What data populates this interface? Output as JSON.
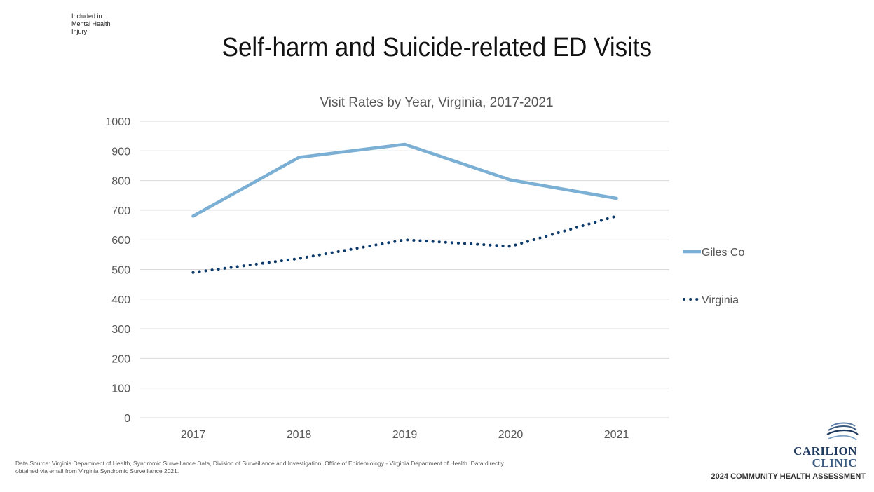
{
  "included": {
    "heading": "Included in:",
    "items": [
      "Mental Health",
      "Injury"
    ]
  },
  "slide_title": "Self-harm and Suicide-related ED Visits",
  "chart_data": {
    "type": "line",
    "title": "Visit Rates by Year, Virginia, 2017-2021",
    "xlabel": "",
    "ylabel": "",
    "categories": [
      "2017",
      "2018",
      "2019",
      "2020",
      "2021"
    ],
    "ylim": [
      0,
      1000
    ],
    "yticks": [
      0,
      100,
      200,
      300,
      400,
      500,
      600,
      700,
      800,
      900,
      1000
    ],
    "grid": true,
    "legend_position": "right",
    "series": [
      {
        "name": "Giles Co",
        "values": [
          680,
          878,
          922,
          802,
          740
        ],
        "color": "#7bafd4",
        "style": "solid"
      },
      {
        "name": "Virginia",
        "values": [
          490,
          537,
          600,
          578,
          680
        ],
        "color": "#0b3a6b",
        "style": "dotted"
      }
    ]
  },
  "footnote": {
    "line1": "Data Source: Virginia Department of Health, Syndromic Surveillance Data, Division of Surveillance and Investigation, Office of Epidemiology - Virginia Department of Health. Data directly",
    "line2": "obtained via email from Virginia Syndromic Surveillance 2021."
  },
  "logo": {
    "word1": "CARILION",
    "word2": "CLINIC"
  },
  "assessment_label": "2024 COMMUNITY HEALTH ASSESSMENT"
}
